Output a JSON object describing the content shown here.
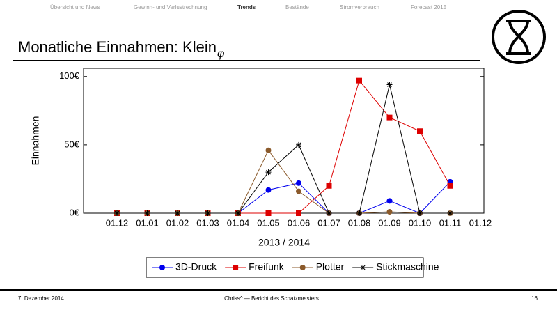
{
  "nav": [
    "Übersicht und News",
    "Gewinn- und Verlustrechnung",
    "Trends",
    "Bestände",
    "Stromverbrauch",
    "Forecast 2015"
  ],
  "title": "Monatliche Einnahmen: Klein",
  "title_subscript": "φ",
  "chart_data": {
    "type": "line",
    "x_label": "2013 / 2014",
    "y_label": "Einnahmen",
    "categories": [
      "01.12",
      "01.01",
      "01.02",
      "01.03",
      "01.04",
      "01.05",
      "01.06",
      "01.07",
      "01.08",
      "01.09",
      "01.10",
      "01.11",
      "01.12"
    ],
    "series": [
      {
        "name": "3D-Druck",
        "color": "#0000ee",
        "marker": "circle",
        "values": [
          0,
          0,
          0,
          0,
          0,
          17,
          22,
          0,
          0,
          9,
          0,
          23,
          null
        ]
      },
      {
        "name": "Freifunk",
        "color": "#dd0000",
        "marker": "square",
        "values": [
          0,
          0,
          0,
          0,
          0,
          0,
          0,
          20,
          97,
          70,
          60,
          20,
          null
        ]
      },
      {
        "name": "Plotter",
        "color": "#8b5a2b",
        "marker": "circle",
        "values": [
          0,
          0,
          0,
          0,
          0,
          46,
          16,
          0,
          0,
          1,
          0,
          0,
          null
        ]
      },
      {
        "name": "Stickmaschine",
        "color": "#000000",
        "marker": "star",
        "values": [
          0,
          0,
          0,
          0,
          0,
          30,
          50,
          0,
          0,
          94,
          0,
          0,
          null
        ]
      }
    ],
    "ylim": [
      0,
      106
    ],
    "yticks": [
      {
        "value": 0,
        "label": "0€"
      },
      {
        "value": 50,
        "label": "50€"
      },
      {
        "value": 100,
        "label": "100€"
      }
    ],
    "grid": false,
    "legend": "bottom"
  },
  "footer": {
    "date": "7. Dezember 2014",
    "author": "Chriss^ — Bericht des Schatzmeisters",
    "page": "16"
  }
}
